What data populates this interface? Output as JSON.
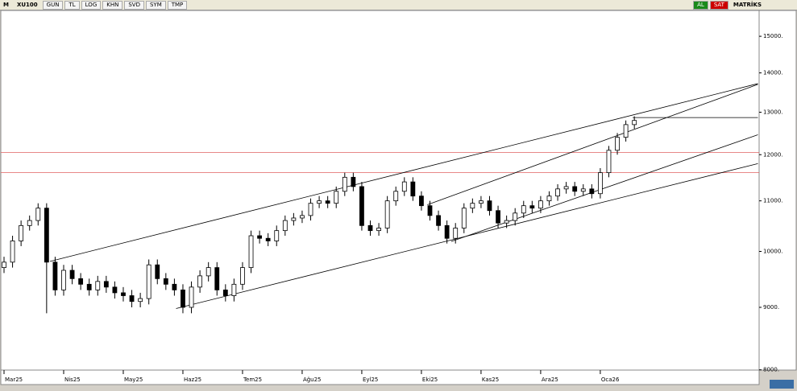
{
  "toolbar": {
    "logo": "M",
    "symbol": "XU100",
    "buttons": [
      "GUN",
      "TL",
      "LOG",
      "KHN",
      "SVD",
      "SYM",
      "TMP"
    ],
    "buy": "AL",
    "sell": "SAT",
    "brand": "MATRİKS"
  },
  "chart_data": {
    "type": "candlestick",
    "log_scale": true,
    "categories": [
      "Mar25",
      null,
      null,
      null,
      null,
      null,
      null,
      "Nis25",
      null,
      null,
      null,
      null,
      null,
      null,
      "May25",
      null,
      null,
      null,
      null,
      null,
      null,
      "Haz25",
      null,
      null,
      null,
      null,
      null,
      null,
      "Tem25",
      null,
      null,
      null,
      null,
      null,
      null,
      "Ağu25",
      null,
      null,
      null,
      null,
      null,
      null,
      "Eyl25",
      null,
      null,
      null,
      null,
      null,
      null,
      "Eki25",
      null,
      null,
      null,
      null,
      null,
      null,
      "Kas25",
      null,
      null,
      null,
      null,
      null,
      null,
      "Ara25",
      null,
      null,
      null,
      null,
      null,
      null,
      "Oca26",
      null,
      null,
      null,
      null
    ],
    "open": [
      9700,
      9800,
      10200,
      10500,
      10600,
      10850,
      9800,
      9300,
      9650,
      9500,
      9400,
      9300,
      9450,
      9350,
      9250,
      9200,
      9100,
      9150,
      9750,
      9500,
      9400,
      9300,
      9000,
      9350,
      9550,
      9700,
      9300,
      9200,
      9400,
      9700,
      10300,
      10250,
      10200,
      10400,
      10600,
      10650,
      10700,
      10950,
      11000,
      10950,
      11200,
      11500,
      11300,
      10500,
      10400,
      10450,
      11000,
      11200,
      11400,
      11100,
      10900,
      10700,
      10500,
      10250,
      10450,
      10850,
      10950,
      11000,
      10800,
      10550,
      10600,
      10750,
      10900,
      10850,
      11000,
      11100,
      11250,
      11300,
      11200,
      11250,
      11150,
      11600,
      12100,
      12400,
      12700
    ],
    "high": [
      9900,
      10300,
      10600,
      10700,
      10950,
      10950,
      9900,
      9750,
      9750,
      9600,
      9500,
      9550,
      9550,
      9450,
      9350,
      9300,
      9250,
      9850,
      9850,
      9600,
      9500,
      9400,
      9450,
      9650,
      9800,
      9800,
      9400,
      9500,
      9800,
      10400,
      10400,
      10350,
      10500,
      10700,
      10750,
      10800,
      11050,
      11100,
      11100,
      11300,
      11600,
      11600,
      11400,
      10600,
      10550,
      11100,
      11300,
      11500,
      11500,
      11200,
      11000,
      10800,
      10600,
      10550,
      10950,
      11050,
      11100,
      11100,
      10900,
      10700,
      10850,
      11000,
      11000,
      11100,
      11200,
      11350,
      11400,
      11400,
      11350,
      11350,
      11700,
      12200,
      12500,
      12800,
      12900
    ],
    "low": [
      9600,
      9700,
      10100,
      10400,
      10500,
      8900,
      9200,
      9200,
      9400,
      9300,
      9200,
      9200,
      9250,
      9150,
      9100,
      9000,
      9000,
      9050,
      9400,
      9300,
      9200,
      8900,
      8900,
      9250,
      9450,
      9200,
      9100,
      9100,
      9300,
      9600,
      10150,
      10100,
      10100,
      10300,
      10500,
      10550,
      10600,
      10850,
      10850,
      10850,
      11100,
      11200,
      10400,
      10300,
      10300,
      10350,
      10900,
      11100,
      11000,
      10800,
      10600,
      10400,
      10150,
      10150,
      10350,
      10750,
      10850,
      10700,
      10450,
      10450,
      10500,
      10650,
      10750,
      10750,
      10900,
      11000,
      11150,
      11100,
      11100,
      11050,
      11050,
      11500,
      12000,
      12300,
      12600
    ],
    "close": [
      9800,
      10200,
      10500,
      10600,
      10850,
      9800,
      9300,
      9650,
      9500,
      9400,
      9300,
      9450,
      9350,
      9250,
      9200,
      9100,
      9150,
      9750,
      9500,
      9400,
      9300,
      9000,
      9350,
      9550,
      9700,
      9300,
      9200,
      9400,
      9700,
      10300,
      10250,
      10200,
      10400,
      10600,
      10650,
      10700,
      10950,
      11000,
      10950,
      11200,
      11500,
      11300,
      10500,
      10400,
      10450,
      11000,
      11200,
      11400,
      11100,
      10900,
      10700,
      10500,
      10250,
      10450,
      10850,
      10950,
      11000,
      10800,
      10550,
      10600,
      10750,
      10900,
      10850,
      11000,
      11100,
      11250,
      11300,
      11200,
      11250,
      11150,
      11600,
      12100,
      12400,
      12700,
      12800
    ],
    "up_color": "#ffffff",
    "down_color": "#000000",
    "ylim": [
      7840,
      15820
    ],
    "yticks": [
      {
        "value": 8000,
        "label": "8000."
      },
      {
        "value": 9000,
        "label": "9000."
      },
      {
        "value": 10000,
        "label": "10000."
      },
      {
        "value": 11000,
        "label": "11000."
      },
      {
        "value": 12000,
        "label": "12000."
      },
      {
        "value": 13000,
        "label": "13000."
      },
      {
        "value": 14000,
        "label": "14000."
      },
      {
        "value": 15000,
        "label": "15000."
      }
    ],
    "hlines": [
      {
        "value": 12050,
        "color": "#e06060"
      },
      {
        "value": 11600,
        "color": "#e06060"
      }
    ],
    "trendlines": [
      {
        "x": [
          5.4,
          88.5
        ],
        "y": [
          9815,
          13720
        ]
      },
      {
        "x": [
          20.2,
          88.5
        ],
        "y": [
          8980,
          11800
        ]
      },
      {
        "x": [
          49.7,
          88.5
        ],
        "y": [
          10920,
          13700
        ]
      },
      {
        "x": [
          52.5,
          88.5
        ],
        "y": [
          10190,
          12460
        ]
      },
      {
        "x": [
          73.8,
          88.5
        ],
        "y": [
          12870,
          12870
        ]
      }
    ]
  }
}
